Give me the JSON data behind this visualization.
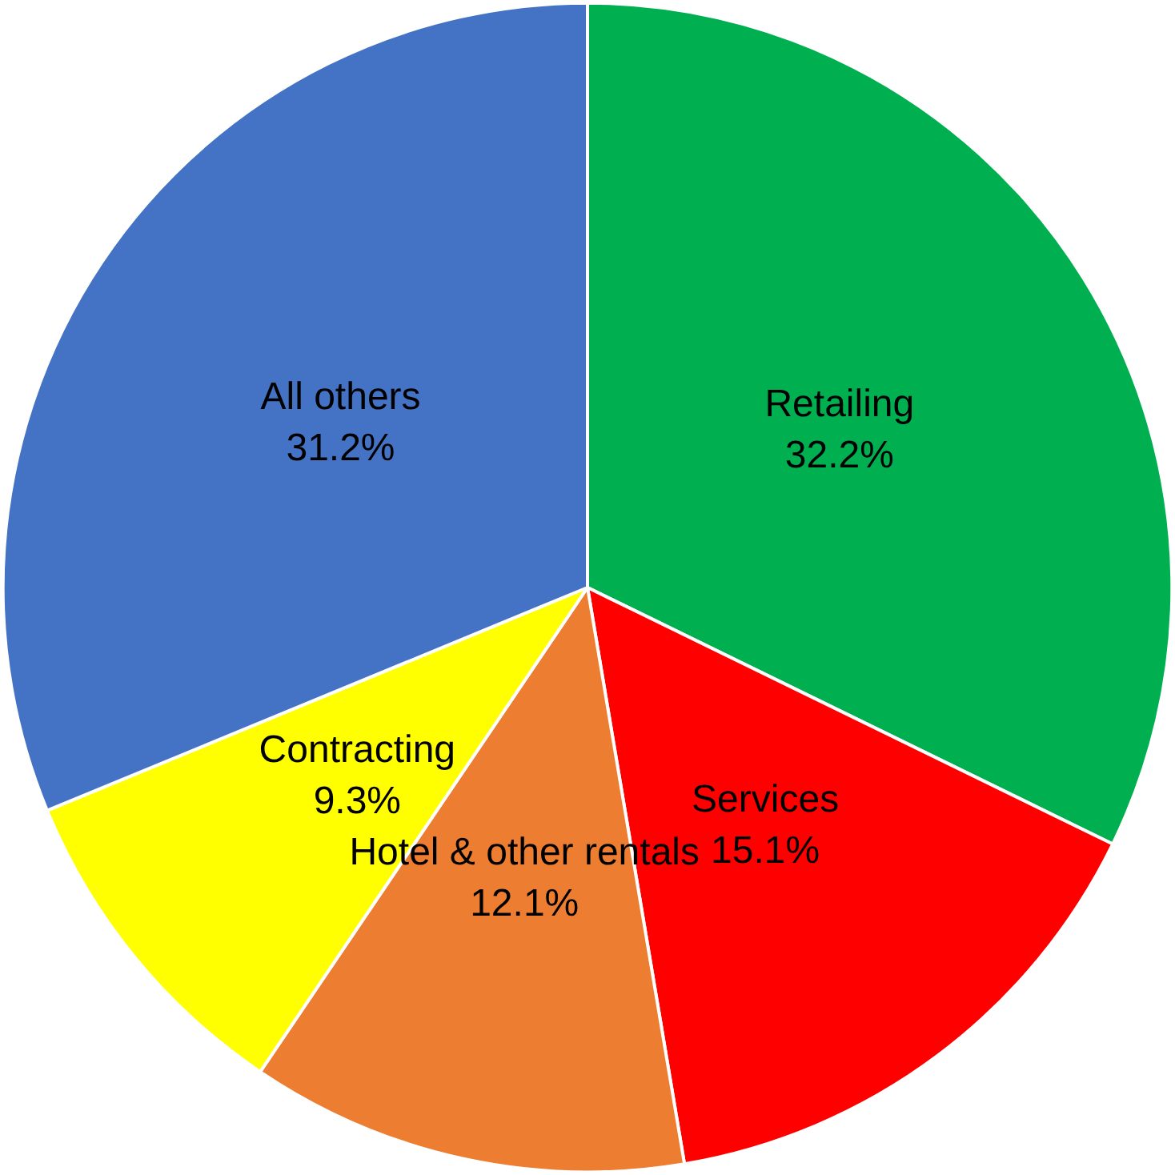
{
  "chart_data": {
    "type": "pie",
    "categories": [
      "Retailing",
      "Services",
      "Hotel & other rentals",
      "Contracting",
      "All others"
    ],
    "values": [
      32.2,
      15.1,
      12.1,
      9.3,
      31.2
    ],
    "value_labels": [
      "32.2%",
      "15.1%",
      "12.1%",
      "9.3%",
      "31.2%"
    ],
    "colors": [
      "#00b050",
      "#ff0000",
      "#ed7d31",
      "#ffff00",
      "#4472c4"
    ],
    "legend": false
  }
}
